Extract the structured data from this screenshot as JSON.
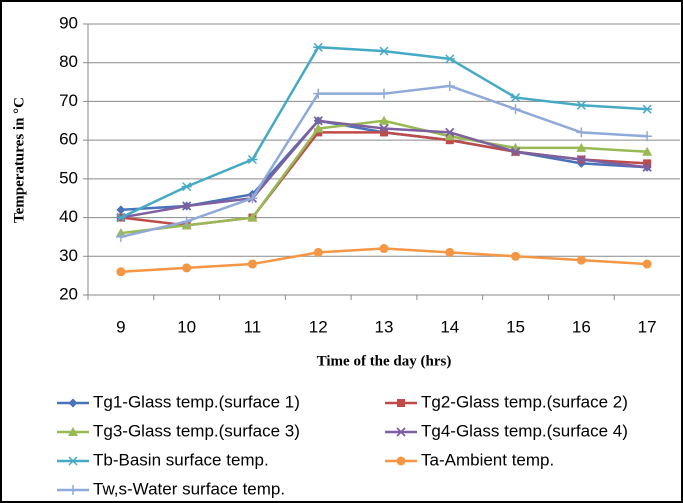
{
  "chart_data": {
    "type": "line",
    "y_label": "Temperatures  in °C",
    "x_label": "Time of the day (hrs)",
    "categories": [
      "9",
      "10",
      "11",
      "12",
      "13",
      "14",
      "15",
      "16",
      "17"
    ],
    "ylim": [
      20,
      90
    ],
    "yticks": [
      20,
      30,
      40,
      50,
      60,
      70,
      80,
      90
    ],
    "grid": true,
    "legend": "bottom",
    "series": [
      {
        "name": "Tg1-Glass temp.(surface 1)",
        "color": "#4a72b8",
        "marker": "diamond",
        "values": [
          42,
          43,
          46,
          65,
          62,
          60,
          57,
          54,
          53
        ]
      },
      {
        "name": "Tg2-Glass temp.(surface 2)",
        "color": "#be4b48",
        "marker": "square",
        "values": [
          40,
          38,
          40,
          62,
          62,
          60,
          57,
          55,
          54
        ]
      },
      {
        "name": "Tg3-Glass temp.(surface 3)",
        "color": "#98b954",
        "marker": "triangle",
        "values": [
          36,
          38,
          40,
          63,
          65,
          61,
          58,
          58,
          57
        ]
      },
      {
        "name": "Tg4-Glass temp.(surface 4)",
        "color": "#7d60a0",
        "marker": "x",
        "values": [
          40,
          43,
          45,
          65,
          63,
          62,
          57,
          55,
          53
        ]
      },
      {
        "name": "Tb-Basin surface temp.",
        "color": "#46aac5",
        "marker": "star",
        "values": [
          40,
          48,
          55,
          84,
          83,
          81,
          71,
          69,
          68
        ]
      },
      {
        "name": "Ta-Ambient temp.",
        "color": "#f59645",
        "marker": "circle",
        "values": [
          26,
          27,
          28,
          31,
          32,
          31,
          30,
          29,
          28
        ]
      },
      {
        "name": "Tw,s-Water surface temp.",
        "color": "#8fa9d8",
        "marker": "plus",
        "values": [
          35,
          39,
          45,
          72,
          72,
          74,
          68,
          62,
          61
        ]
      }
    ]
  }
}
